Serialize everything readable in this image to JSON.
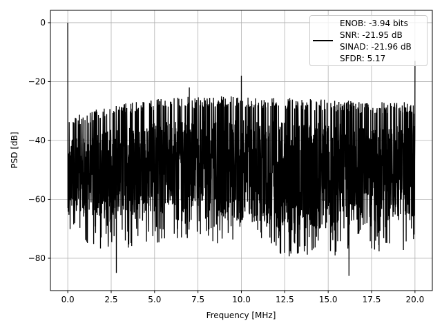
{
  "chart_data": {
    "type": "line",
    "title": "",
    "xlabel": "Frequency [MHz]",
    "ylabel": "PSD [dB]",
    "xlim": [
      -1.0,
      21.0
    ],
    "ylim": [
      -91.0,
      4.2
    ],
    "xticks": [
      0.0,
      2.5,
      5.0,
      7.5,
      10.0,
      12.5,
      15.0,
      17.5,
      20.0
    ],
    "xtick_labels": [
      "0.0",
      "2.5",
      "5.0",
      "7.5",
      "10.0",
      "12.5",
      "15.0",
      "17.5",
      "20.0"
    ],
    "yticks": [
      0,
      -20,
      -40,
      -60,
      -80
    ],
    "ytick_labels": [
      "0",
      "−20",
      "−40",
      "−60",
      "−80"
    ],
    "grid": true,
    "legend_placement": "top-right",
    "legend": [
      "ENOB: -3.94 bits",
      "SNR: -21.95 dB",
      "SINAD: -21.96 dB",
      "SFDR: 5.17"
    ],
    "line_color": "#000000",
    "series": [
      {
        "x_range": [
          0,
          20
        ],
        "envelope_x": [
          0,
          2.5,
          5,
          7.5,
          10,
          12.5,
          15,
          17.5,
          20
        ],
        "upper_envelope": [
          -32,
          -28,
          -26,
          -25,
          -25,
          -25.5,
          -26,
          -27,
          -27
        ],
        "lower_envelope": [
          -73,
          -78,
          -75,
          -74,
          -78,
          -80,
          -80,
          -78,
          -77
        ],
        "spikes": [
          {
            "x": 0,
            "y": 0
          },
          {
            "x": 10,
            "y": -18
          },
          {
            "x": 20,
            "y": -13
          },
          {
            "x": 7.0,
            "y": -22
          },
          {
            "x": 16.2,
            "y": -86
          },
          {
            "x": 2.8,
            "y": -85
          }
        ]
      }
    ]
  }
}
